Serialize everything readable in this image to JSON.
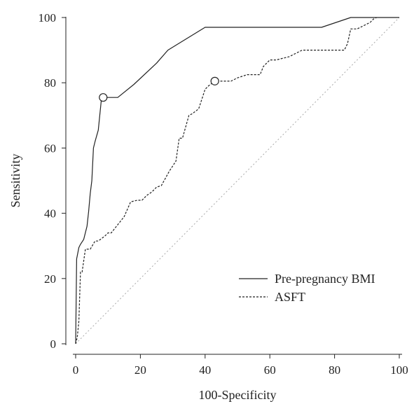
{
  "chart_data": {
    "type": "line",
    "title": "",
    "xlabel": "100-Specificity",
    "ylabel": "Sensitivity",
    "xlim": [
      0,
      100
    ],
    "ylim": [
      0,
      100
    ],
    "xticks": [
      "0",
      "20",
      "40",
      "60",
      "80",
      "100"
    ],
    "yticks": [
      "0",
      "20",
      "40",
      "60",
      "80",
      "100"
    ],
    "grid": false,
    "legend_position": "bottom-right",
    "series": [
      {
        "name": "Pre-pregnancy BMI",
        "style": "solid",
        "color": "#222222",
        "x": [
          0,
          0.3,
          0.5,
          1.0,
          1.5,
          2.5,
          3.5,
          4.0,
          4.5,
          5.0,
          5.5,
          6.0,
          7.0,
          8.0,
          9.5,
          13.0,
          18.0,
          25.0,
          28.5,
          40.0,
          76.0,
          85.0,
          100.0
        ],
        "y": [
          0,
          26,
          27,
          29.5,
          30.5,
          32,
          36,
          40.5,
          46,
          50,
          60,
          62,
          65.5,
          75.5,
          75.5,
          75.5,
          79.5,
          86,
          90,
          97,
          97,
          100,
          100
        ]
      },
      {
        "name": "ASFT",
        "style": "dashed",
        "color": "#222222",
        "x": [
          0,
          0.5,
          1.0,
          1.5,
          2.0,
          3.0,
          4.5,
          6.0,
          7.0,
          9.0,
          10.0,
          11.0,
          13.0,
          15.0,
          17.0,
          19.0,
          20.5,
          22.0,
          23.5,
          25.0,
          26.5,
          29.0,
          31.0,
          32.0,
          33.0,
          34.0,
          35.0,
          36.0,
          38.0,
          39.0,
          40.0,
          41.0,
          43.0,
          48.0,
          50.0,
          53.0,
          57.0,
          58.0,
          60.0,
          62.0,
          66.0,
          70.0,
          72.0,
          75.0,
          80.0,
          83.0,
          84.0,
          85.0,
          87.0,
          91.0,
          92.0,
          93.0
        ],
        "y": [
          0,
          2,
          7,
          22,
          22,
          29,
          29,
          31.5,
          31.5,
          33,
          34,
          34,
          36.5,
          39,
          43.5,
          44,
          44,
          45.5,
          46.5,
          48,
          48.5,
          53,
          56,
          63,
          63,
          66.5,
          70,
          70.5,
          72,
          75,
          78,
          79,
          80.5,
          80.5,
          81.5,
          82.5,
          82.5,
          85,
          87,
          87,
          88,
          90,
          90,
          90,
          90,
          90,
          92,
          96.5,
          96.5,
          98.5,
          99.5,
          100
        ]
      }
    ],
    "reference_line": {
      "style": "dotted",
      "color": "#aaaaaa",
      "x": [
        0,
        100
      ],
      "y": [
        0,
        100
      ]
    },
    "markers": [
      {
        "series": "Pre-pregnancy BMI",
        "x": 8.5,
        "y": 75.5,
        "shape": "open-circle"
      },
      {
        "series": "ASFT",
        "x": 43.0,
        "y": 80.5,
        "shape": "open-circle"
      }
    ]
  }
}
